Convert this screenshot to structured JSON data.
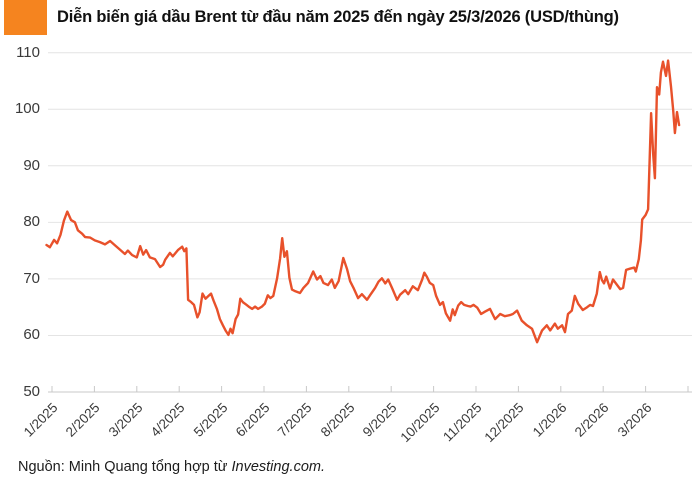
{
  "header": {
    "title": "Diễn biến giá dầu Brent từ đầu năm 2025 đến ngày 25/3/2026 (USD/thùng)",
    "accent_color": "#F5841F"
  },
  "source": {
    "prefix": "Nguồn: Minh Quang tổng hợp từ ",
    "publisher": "Investing.com."
  },
  "chart_data": {
    "type": "line",
    "title": "Diễn biến giá dầu Brent từ đầu năm 2025 đến ngày 25/3/2026 (USD/thùng)",
    "series_name": "Giá dầu Brent (USD/thùng)",
    "line_color": "#E8512B",
    "grid": true,
    "gridline_color": "#e4e4e4",
    "axis_color": "#c8c8c8",
    "ylim": [
      50,
      110
    ],
    "yticks": [
      50,
      60,
      70,
      80,
      90,
      100,
      110
    ],
    "x_tick_labels": [
      "1/2025",
      "2/2025",
      "3/2025",
      "4/2025",
      "5/2025",
      "6/2025",
      "7/2025",
      "8/2025",
      "9/2025",
      "10/2025",
      "11/2025",
      "12/2025",
      "1/2026",
      "2/2026",
      "3/2026"
    ],
    "x_unit": "months since 1/2025 (0 = 1/2025 tick)",
    "points": [
      [
        -0.13,
        76.0
      ],
      [
        -0.05,
        75.6
      ],
      [
        0.05,
        76.9
      ],
      [
        0.12,
        76.3
      ],
      [
        0.2,
        77.8
      ],
      [
        0.28,
        80.3
      ],
      [
        0.36,
        81.9
      ],
      [
        0.45,
        80.4
      ],
      [
        0.54,
        80.0
      ],
      [
        0.61,
        78.6
      ],
      [
        0.71,
        78.0
      ],
      [
        0.78,
        77.4
      ],
      [
        0.9,
        77.3
      ],
      [
        1.01,
        76.8
      ],
      [
        1.13,
        76.5
      ],
      [
        1.25,
        76.1
      ],
      [
        1.37,
        76.7
      ],
      [
        1.49,
        75.9
      ],
      [
        1.6,
        75.2
      ],
      [
        1.72,
        74.4
      ],
      [
        1.79,
        75.0
      ],
      [
        1.89,
        74.2
      ],
      [
        2.0,
        73.8
      ],
      [
        2.08,
        75.8
      ],
      [
        2.15,
        74.3
      ],
      [
        2.22,
        75.1
      ],
      [
        2.31,
        73.8
      ],
      [
        2.43,
        73.5
      ],
      [
        2.55,
        72.1
      ],
      [
        2.62,
        72.5
      ],
      [
        2.67,
        73.4
      ],
      [
        2.78,
        74.6
      ],
      [
        2.85,
        74.0
      ],
      [
        2.97,
        75.1
      ],
      [
        3.07,
        75.7
      ],
      [
        3.12,
        74.9
      ],
      [
        3.17,
        75.4
      ],
      [
        3.21,
        66.3
      ],
      [
        3.28,
        65.9
      ],
      [
        3.35,
        65.4
      ],
      [
        3.43,
        63.2
      ],
      [
        3.48,
        64.1
      ],
      [
        3.55,
        67.4
      ],
      [
        3.62,
        66.5
      ],
      [
        3.69,
        67.0
      ],
      [
        3.75,
        67.4
      ],
      [
        3.81,
        66.2
      ],
      [
        3.89,
        64.7
      ],
      [
        3.96,
        62.9
      ],
      [
        4.03,
        61.8
      ],
      [
        4.1,
        60.8
      ],
      [
        4.16,
        60.1
      ],
      [
        4.21,
        61.2
      ],
      [
        4.26,
        60.4
      ],
      [
        4.33,
        62.9
      ],
      [
        4.39,
        63.7
      ],
      [
        4.44,
        66.5
      ],
      [
        4.5,
        65.9
      ],
      [
        4.57,
        65.5
      ],
      [
        4.64,
        65.1
      ],
      [
        4.72,
        64.7
      ],
      [
        4.79,
        65.1
      ],
      [
        4.86,
        64.7
      ],
      [
        4.95,
        65.1
      ],
      [
        5.02,
        65.6
      ],
      [
        5.09,
        67.1
      ],
      [
        5.15,
        66.6
      ],
      [
        5.22,
        67.0
      ],
      [
        5.31,
        70.1
      ],
      [
        5.38,
        73.6
      ],
      [
        5.43,
        77.2
      ],
      [
        5.48,
        73.9
      ],
      [
        5.54,
        74.9
      ],
      [
        5.6,
        70.2
      ],
      [
        5.66,
        68.1
      ],
      [
        5.74,
        67.8
      ],
      [
        5.85,
        67.5
      ],
      [
        5.93,
        68.4
      ],
      [
        6.04,
        69.3
      ],
      [
        6.16,
        71.3
      ],
      [
        6.25,
        69.9
      ],
      [
        6.33,
        70.5
      ],
      [
        6.4,
        69.3
      ],
      [
        6.51,
        68.9
      ],
      [
        6.6,
        69.9
      ],
      [
        6.67,
        68.4
      ],
      [
        6.76,
        69.6
      ],
      [
        6.87,
        73.7
      ],
      [
        6.96,
        71.7
      ],
      [
        7.03,
        69.6
      ],
      [
        7.11,
        68.4
      ],
      [
        7.22,
        66.6
      ],
      [
        7.31,
        67.3
      ],
      [
        7.43,
        66.3
      ],
      [
        7.51,
        67.2
      ],
      [
        7.62,
        68.4
      ],
      [
        7.7,
        69.5
      ],
      [
        7.78,
        70.1
      ],
      [
        7.86,
        69.2
      ],
      [
        7.93,
        69.9
      ],
      [
        8.02,
        68.4
      ],
      [
        8.14,
        66.3
      ],
      [
        8.21,
        67.2
      ],
      [
        8.33,
        68.0
      ],
      [
        8.4,
        67.3
      ],
      [
        8.51,
        68.7
      ],
      [
        8.63,
        68.0
      ],
      [
        8.73,
        69.9
      ],
      [
        8.78,
        71.1
      ],
      [
        8.84,
        70.4
      ],
      [
        8.91,
        69.3
      ],
      [
        8.99,
        68.9
      ],
      [
        9.06,
        67.0
      ],
      [
        9.15,
        65.4
      ],
      [
        9.22,
        65.9
      ],
      [
        9.29,
        63.9
      ],
      [
        9.39,
        62.6
      ],
      [
        9.45,
        64.6
      ],
      [
        9.5,
        63.6
      ],
      [
        9.58,
        65.3
      ],
      [
        9.65,
        65.9
      ],
      [
        9.72,
        65.4
      ],
      [
        9.81,
        65.2
      ],
      [
        9.87,
        65.1
      ],
      [
        9.94,
        65.4
      ],
      [
        10.03,
        64.9
      ],
      [
        10.12,
        63.8
      ],
      [
        10.21,
        64.2
      ],
      [
        10.33,
        64.7
      ],
      [
        10.45,
        62.9
      ],
      [
        10.57,
        63.8
      ],
      [
        10.68,
        63.4
      ],
      [
        10.8,
        63.6
      ],
      [
        10.87,
        63.8
      ],
      [
        10.97,
        64.4
      ],
      [
        11.08,
        62.6
      ],
      [
        11.2,
        61.8
      ],
      [
        11.32,
        61.2
      ],
      [
        11.44,
        58.8
      ],
      [
        11.56,
        60.9
      ],
      [
        11.67,
        61.8
      ],
      [
        11.75,
        60.9
      ],
      [
        11.86,
        62.1
      ],
      [
        11.93,
        61.2
      ],
      [
        12.03,
        61.8
      ],
      [
        12.1,
        60.6
      ],
      [
        12.17,
        63.8
      ],
      [
        12.26,
        64.4
      ],
      [
        12.33,
        67.0
      ],
      [
        12.41,
        65.6
      ],
      [
        12.52,
        64.5
      ],
      [
        12.62,
        65.0
      ],
      [
        12.69,
        65.4
      ],
      [
        12.76,
        65.2
      ],
      [
        12.85,
        67.4
      ],
      [
        12.92,
        71.2
      ],
      [
        12.97,
        69.8
      ],
      [
        13.02,
        69.2
      ],
      [
        13.07,
        70.4
      ],
      [
        13.16,
        68.3
      ],
      [
        13.23,
        69.9
      ],
      [
        13.33,
        68.9
      ],
      [
        13.4,
        68.2
      ],
      [
        13.47,
        68.4
      ],
      [
        13.54,
        71.6
      ],
      [
        13.63,
        71.8
      ],
      [
        13.73,
        72.0
      ],
      [
        13.77,
        71.3
      ],
      [
        13.84,
        73.5
      ],
      [
        13.89,
        76.8
      ],
      [
        13.92,
        80.5
      ],
      [
        14.0,
        81.3
      ],
      [
        14.06,
        82.3
      ],
      [
        14.13,
        99.3
      ],
      [
        14.18,
        92.0
      ],
      [
        14.22,
        87.8
      ],
      [
        14.27,
        103.9
      ],
      [
        14.32,
        102.6
      ],
      [
        14.36,
        106.5
      ],
      [
        14.41,
        108.4
      ],
      [
        14.48,
        105.9
      ],
      [
        14.53,
        108.6
      ],
      [
        14.6,
        104.0
      ],
      [
        14.65,
        99.8
      ],
      [
        14.69,
        95.8
      ],
      [
        14.74,
        99.5
      ],
      [
        14.79,
        97.2
      ]
    ],
    "last_point_label": "25/3/2026 ≈ 97 USD/thùng",
    "legend_position": "none"
  }
}
